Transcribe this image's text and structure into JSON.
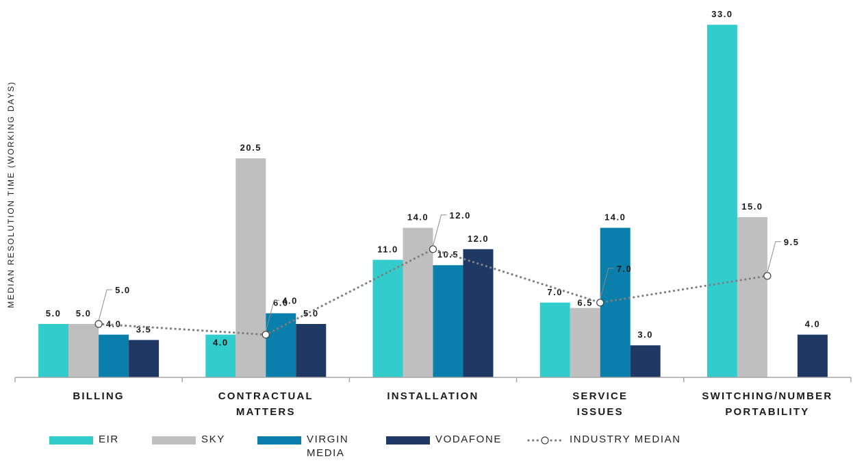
{
  "chart_data": {
    "type": "bar",
    "ylabel": "MEDIAN RESOLUTION TIME (WORKING DAYS)",
    "xlabel": "",
    "ylim": [
      0,
      34
    ],
    "grid": false,
    "legend_position": "bottom",
    "categories": [
      [
        "BILLING"
      ],
      [
        "CONTRACTUAL",
        "MATTERS"
      ],
      [
        "INSTALLATION"
      ],
      [
        "SERVICE",
        "ISSUES"
      ],
      [
        "SWITCHING/NUMBER",
        "PORTABILITY"
      ]
    ],
    "series": [
      {
        "name": "EIR",
        "color": "#33cccc",
        "values": [
          5.0,
          4.0,
          11.0,
          7.0,
          33.0
        ],
        "labels": [
          "5.0",
          "4.0",
          "11.0",
          "7.0",
          "33.0"
        ]
      },
      {
        "name": "SKY",
        "color": "#bfbfbf",
        "values": [
          5.0,
          20.5,
          14.0,
          6.5,
          15.0
        ],
        "labels": [
          "5.0",
          "20.5",
          "14.0",
          "6.5",
          "15.0"
        ]
      },
      {
        "name": "VIRGIN MEDIA",
        "legend_lines": [
          "VIRGIN",
          "MEDIA"
        ],
        "color": "#0b7fab",
        "values": [
          4.0,
          6.0,
          10.5,
          14.0,
          null
        ],
        "labels": [
          "4.0",
          "6.0",
          "10.5",
          "14.0",
          ""
        ]
      },
      {
        "name": "VODAFONE",
        "color": "#1f3864",
        "values": [
          3.5,
          5.0,
          12.0,
          3.0,
          4.0
        ],
        "labels": [
          "3.5",
          "5.0",
          "12.0",
          "3.0",
          "4.0"
        ]
      }
    ],
    "line_series": {
      "name": "INDUSTRY MEDIAN",
      "color": "#7f7f7f",
      "style": "dotted",
      "marker": "open-circle",
      "values": [
        5.0,
        4.0,
        12.0,
        7.0,
        9.5
      ],
      "labels": [
        "5.0",
        "4.0",
        "12.0",
        "7.0",
        "9.5"
      ]
    }
  }
}
